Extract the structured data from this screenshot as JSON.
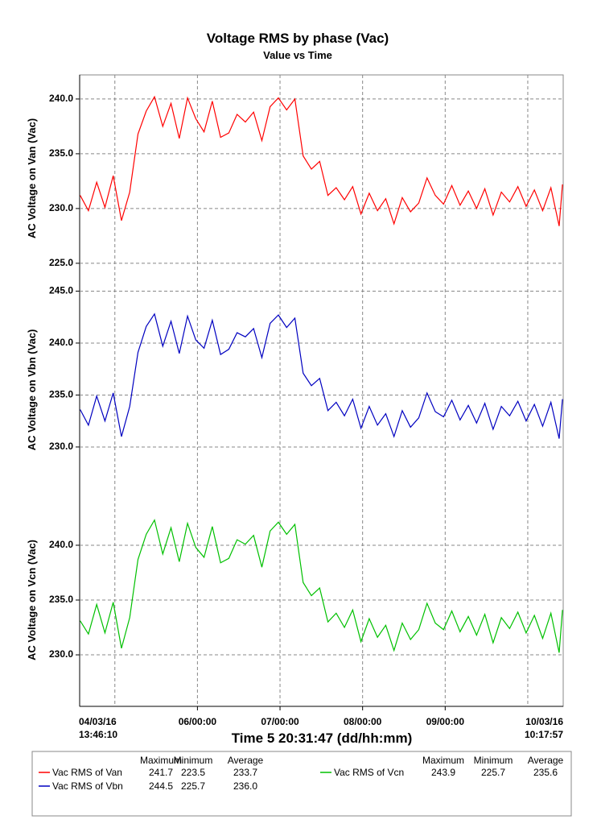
{
  "chart_data": {
    "type": "line",
    "title": "Voltage RMS by phase (Vac)",
    "subtitle": "Value vs Time",
    "x_label": "Time 5 20:31:47 (dd/hh:mm)",
    "x_start_label": [
      "04/03/16",
      "13:46:10"
    ],
    "x_end_label": [
      "10/03/16",
      "10:17:57"
    ],
    "xlim": [
      4.5737,
      10.4291
    ],
    "xticks": [
      {
        "value": 6,
        "label": "06/00:00"
      },
      {
        "value": 7,
        "label": "07/00:00"
      },
      {
        "value": 8,
        "label": "08/00:00"
      },
      {
        "value": 9,
        "label": "09/00:00"
      }
    ],
    "xgrid": [
      5,
      6,
      7,
      8,
      9,
      10
    ],
    "grid": true,
    "x": [
      4.58,
      4.68,
      4.78,
      4.88,
      4.98,
      5.08,
      5.18,
      5.28,
      5.38,
      5.48,
      5.58,
      5.68,
      5.78,
      5.88,
      5.98,
      6.08,
      6.18,
      6.28,
      6.38,
      6.48,
      6.58,
      6.68,
      6.78,
      6.88,
      6.98,
      7.08,
      7.18,
      7.28,
      7.38,
      7.48,
      7.58,
      7.68,
      7.78,
      7.88,
      7.98,
      8.08,
      8.18,
      8.28,
      8.38,
      8.48,
      8.58,
      8.68,
      8.78,
      8.88,
      8.98,
      9.08,
      9.18,
      9.28,
      9.38,
      9.48,
      9.58,
      9.68,
      9.78,
      9.88,
      9.98,
      10.08,
      10.18,
      10.28,
      10.38,
      10.42
    ],
    "panels": [
      {
        "y_label": "AC Voltage on Van (Vac)",
        "ylim": [
          223.3,
          242.2
        ],
        "yticks": [
          {
            "value": 225,
            "label": "225.0"
          },
          {
            "value": 230,
            "label": "230.0"
          },
          {
            "value": 235,
            "label": "235.0"
          },
          {
            "value": 240,
            "label": "240.0"
          }
        ],
        "series": {
          "name": "Vac RMS of Van",
          "color": "#ff0000",
          "stats": [
            "241.7",
            "223.5",
            "233.7"
          ],
          "values": [
            231.2,
            229.8,
            232.4,
            230.1,
            233.0,
            228.9,
            231.5,
            236.8,
            238.9,
            240.2,
            237.5,
            239.6,
            236.4,
            240.1,
            238.2,
            237.0,
            239.8,
            236.5,
            236.9,
            238.6,
            237.9,
            238.8,
            236.2,
            239.3,
            240.1,
            239.0,
            240.0,
            234.8,
            233.6,
            234.3,
            231.2,
            231.9,
            230.8,
            232.0,
            229.5,
            231.4,
            229.8,
            230.9,
            228.6,
            231.0,
            229.7,
            230.5,
            232.8,
            231.2,
            230.4,
            232.1,
            230.3,
            231.6,
            230.0,
            231.8,
            229.4,
            231.5,
            230.6,
            232.0,
            230.2,
            231.7,
            229.8,
            231.9,
            228.4,
            232.2
          ]
        }
      },
      {
        "y_label": "AC Voltage on Vbn (Vac)",
        "ylim": [
          225.5,
          245.5
        ],
        "yticks": [
          {
            "value": 230,
            "label": "230.0"
          },
          {
            "value": 235,
            "label": "235.0"
          },
          {
            "value": 240,
            "label": "240.0"
          },
          {
            "value": 245,
            "label": "245.0"
          }
        ],
        "series": {
          "name": "Vac RMS of Vbn",
          "color": "#0000c0",
          "stats": [
            "244.5",
            "225.7",
            "236.0"
          ],
          "values": [
            233.6,
            232.1,
            234.9,
            232.5,
            235.2,
            231.0,
            233.9,
            239.1,
            241.6,
            242.8,
            239.7,
            242.1,
            239.0,
            242.6,
            240.3,
            239.5,
            242.2,
            238.9,
            239.4,
            241.0,
            240.6,
            241.4,
            238.6,
            241.9,
            242.7,
            241.5,
            242.4,
            237.1,
            235.9,
            236.6,
            233.5,
            234.3,
            233.0,
            234.6,
            231.8,
            233.9,
            232.1,
            233.2,
            231.0,
            233.5,
            231.9,
            232.8,
            235.2,
            233.4,
            232.9,
            234.5,
            232.6,
            234.0,
            232.3,
            234.2,
            231.7,
            233.9,
            233.0,
            234.4,
            232.5,
            234.1,
            232.0,
            234.3,
            230.8,
            234.6
          ]
        }
      },
      {
        "y_label": "AC Voltage on Vcn (Vac)",
        "ylim": [
          225.3,
          244.7
        ],
        "yticks": [
          {
            "value": 230,
            "label": "230.0"
          },
          {
            "value": 235,
            "label": "235.0"
          },
          {
            "value": 240,
            "label": "240.0"
          }
        ],
        "series": {
          "name": "Vac RMS of Vcn",
          "color": "#00c000",
          "stats": [
            "243.9",
            "225.7",
            "235.6"
          ],
          "values": [
            233.1,
            231.9,
            234.6,
            232.0,
            234.8,
            230.6,
            233.4,
            238.7,
            241.0,
            242.3,
            239.2,
            241.6,
            238.5,
            242.0,
            239.8,
            238.9,
            241.7,
            238.4,
            238.8,
            240.5,
            240.1,
            240.9,
            238.0,
            241.3,
            242.1,
            241.0,
            241.9,
            236.6,
            235.4,
            236.1,
            233.0,
            233.8,
            232.5,
            234.1,
            231.2,
            233.3,
            231.6,
            232.7,
            230.4,
            232.9,
            231.4,
            232.3,
            234.7,
            232.9,
            232.3,
            234.0,
            232.1,
            233.5,
            231.8,
            233.7,
            231.1,
            233.4,
            232.4,
            233.9,
            232.0,
            233.6,
            231.5,
            233.8,
            230.2,
            234.1
          ]
        }
      }
    ],
    "legend_headers": [
      "Maximum",
      "Minimum",
      "Average"
    ]
  }
}
